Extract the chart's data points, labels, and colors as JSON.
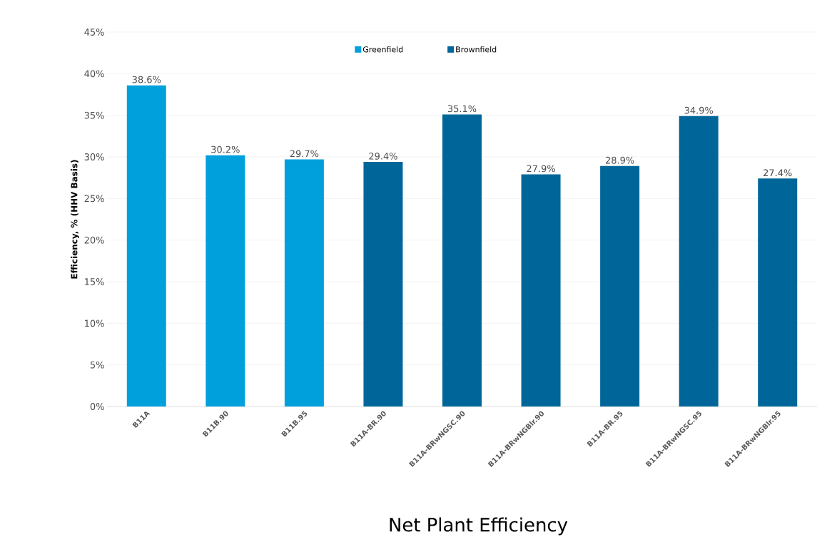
{
  "chart_data": {
    "type": "bar",
    "title": "Net Plant Efficiency",
    "ylabel": "Efficiency, % (HHV Basis)",
    "categories": [
      "B11A",
      "B11B.90",
      "B11B.95",
      "B11A-BR.90",
      "B11A-BRwNGSC.90",
      "B11A-BRwNGBlr.90",
      "B11A-BR.95",
      "B11A-BRwNGSC.95",
      "B11A-BRwNGBlr.95"
    ],
    "series": [
      {
        "name": "Greenfield",
        "color": "#00a0dc",
        "values": [
          38.6,
          30.2,
          29.7,
          null,
          null,
          null,
          null,
          null,
          null
        ],
        "value_labels": [
          "38.6%",
          "30.2%",
          "29.7%",
          null,
          null,
          null,
          null,
          null,
          null
        ]
      },
      {
        "name": "Brownfield",
        "color": "#006699",
        "values": [
          null,
          null,
          null,
          29.4,
          35.1,
          27.9,
          28.9,
          34.9,
          27.4
        ],
        "value_labels": [
          null,
          null,
          null,
          "29.4%",
          "35.1%",
          "27.9%",
          "28.9%",
          "34.9%",
          "27.4%"
        ]
      }
    ],
    "ylim": [
      0,
      45
    ],
    "yticks": [
      {
        "value": 0,
        "label": "0%"
      },
      {
        "value": 5,
        "label": "5%"
      },
      {
        "value": 10,
        "label": "10%"
      },
      {
        "value": 15,
        "label": "15%"
      },
      {
        "value": 20,
        "label": "20%"
      },
      {
        "value": 25,
        "label": "25%"
      },
      {
        "value": 30,
        "label": "30%"
      },
      {
        "value": 35,
        "label": "35%"
      },
      {
        "value": 40,
        "label": "40%"
      },
      {
        "value": 45,
        "label": "45%"
      }
    ],
    "grid": "y",
    "legend": "top"
  }
}
